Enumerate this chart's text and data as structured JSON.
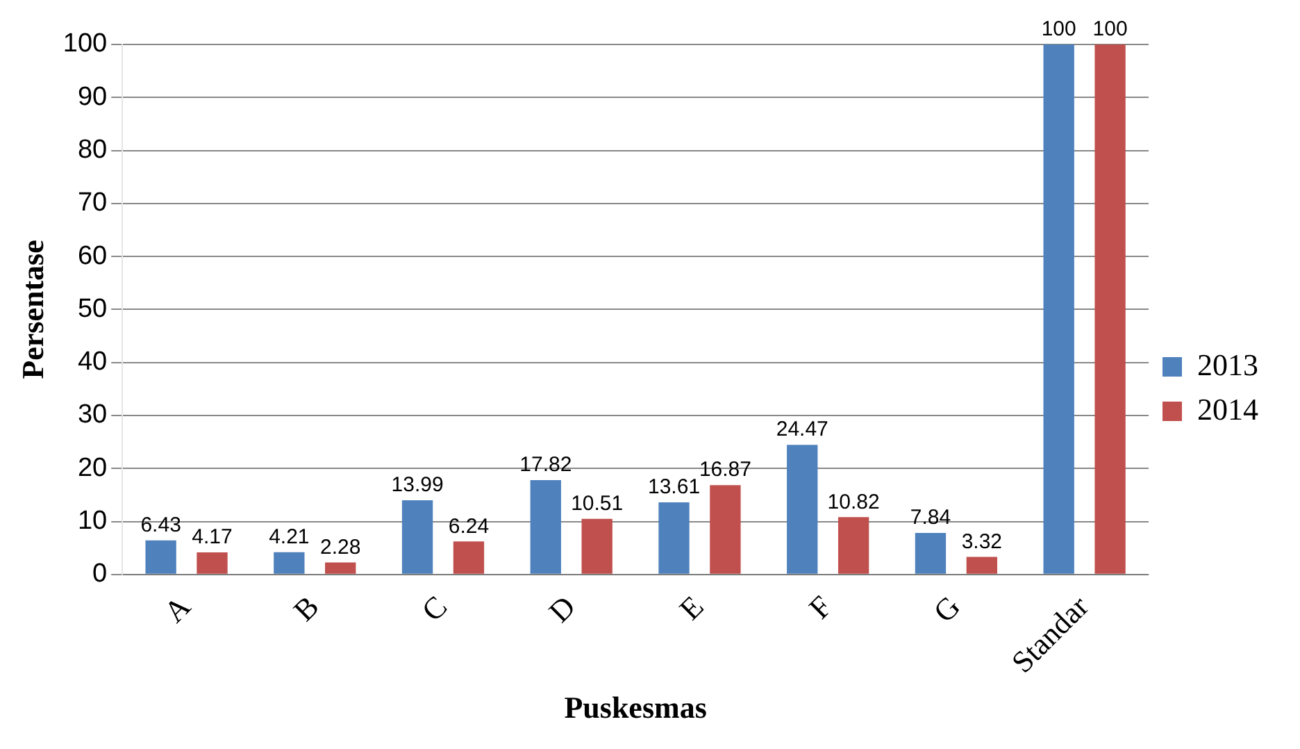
{
  "chart_data": {
    "type": "bar",
    "xlabel": "Puskesmas",
    "ylabel": "Persentase",
    "categories": [
      "A",
      "B",
      "C",
      "D",
      "E",
      "F",
      "G",
      "Standar"
    ],
    "series": [
      {
        "name": "2013",
        "color": "#4f81bd",
        "values": [
          6.43,
          4.21,
          13.99,
          17.82,
          13.61,
          24.47,
          7.84,
          100
        ]
      },
      {
        "name": "2014",
        "color": "#c0504d",
        "values": [
          4.17,
          2.28,
          6.24,
          10.51,
          16.87,
          10.82,
          3.32,
          100
        ]
      }
    ],
    "ylim": [
      0,
      100
    ],
    "yticks": [
      0,
      10,
      20,
      30,
      40,
      50,
      60,
      70,
      80,
      90,
      100
    ],
    "grid": "y",
    "legend": "right",
    "data_labels": true
  }
}
